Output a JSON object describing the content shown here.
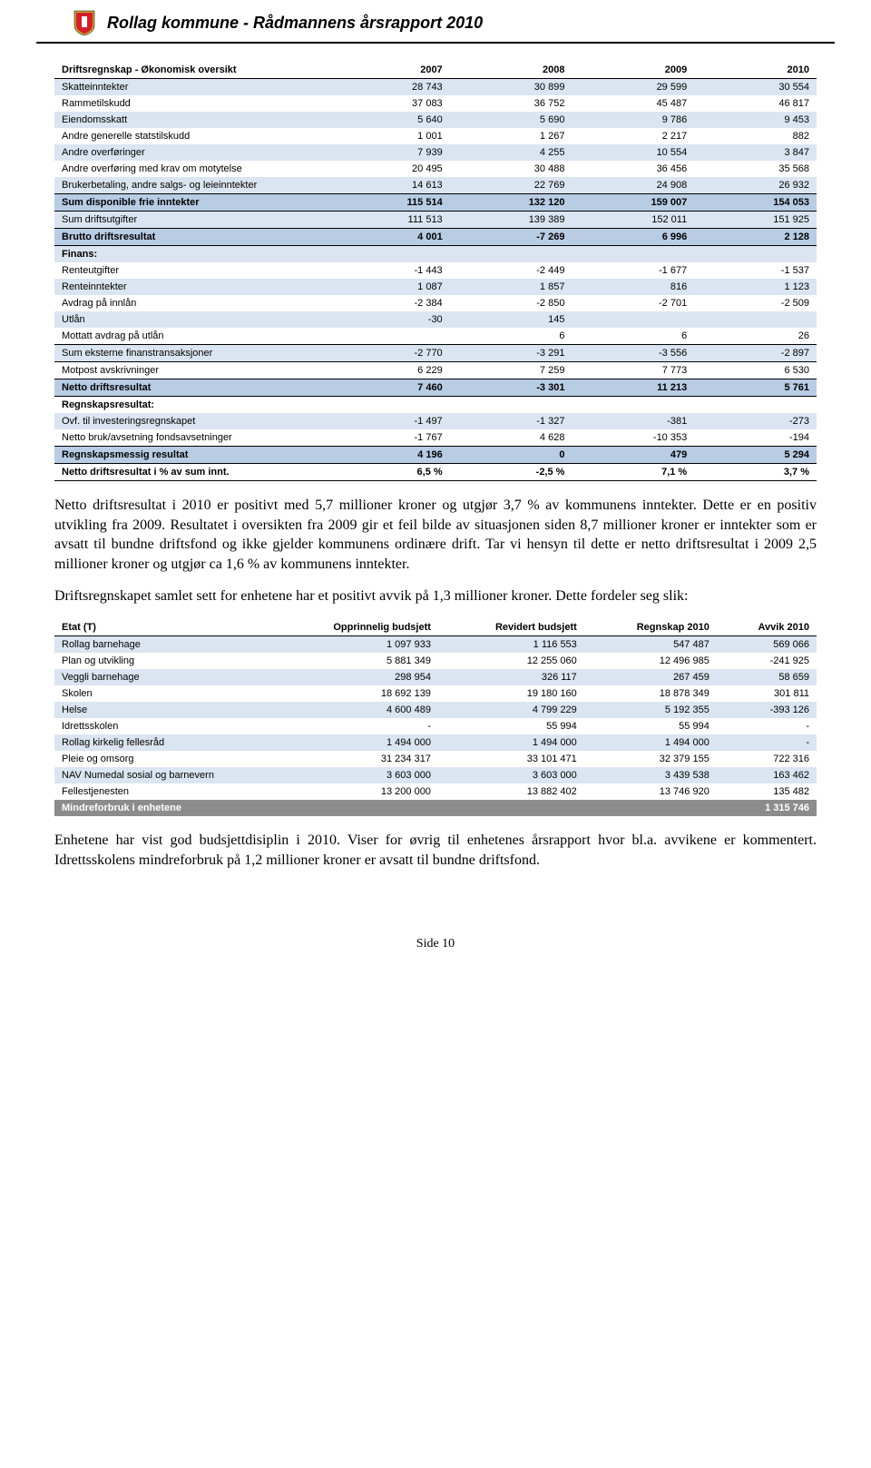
{
  "header": {
    "title": "Rollag kommune  -  Rådmannens årsrapport 2010"
  },
  "table1": {
    "headers": [
      "Driftsregnskap - Økonomisk oversikt",
      "2007",
      "2008",
      "2009",
      "2010"
    ],
    "sections": [
      {
        "rows": [
          {
            "label": "Skatteinntekter",
            "cells": [
              "28 743",
              "30 899",
              "29 599",
              "30 554"
            ],
            "classes": [
              "bg-blue-lt"
            ]
          },
          {
            "label": "Rammetilskudd",
            "cells": [
              "37 083",
              "36 752",
              "45 487",
              "46 817"
            ],
            "classes": []
          },
          {
            "label": "Eiendomsskatt",
            "cells": [
              "5 640",
              "5 690",
              "9 786",
              "9 453"
            ],
            "classes": [
              "bg-blue-lt"
            ]
          },
          {
            "label": "Andre generelle statstilskudd",
            "cells": [
              "1 001",
              "1 267",
              "2 217",
              "882"
            ],
            "classes": []
          },
          {
            "label": "Andre overføringer",
            "cells": [
              "7 939",
              "4 255",
              "10 554",
              "3 847"
            ],
            "classes": [
              "bg-blue-lt"
            ]
          },
          {
            "label": "Andre overføring med krav om motytelse",
            "cells": [
              "20 495",
              "30 488",
              "36 456",
              "35 568"
            ],
            "classes": []
          },
          {
            "label": "Brukerbetaling, andre salgs- og leieinntekter",
            "cells": [
              "14 613",
              "22 769",
              "24 908",
              "26 932"
            ],
            "classes": [
              "bg-blue-lt"
            ]
          },
          {
            "label": "Sum disponible frie inntekter",
            "cells": [
              "115 514",
              "132 120",
              "159 007",
              "154 053"
            ],
            "classes": [
              "bg-blue-md",
              "bold",
              "border-top",
              "border-bottom"
            ]
          }
        ]
      },
      {
        "rows": [
          {
            "label": "Sum driftsutgifter",
            "cells": [
              "111 513",
              "139 389",
              "152 011",
              "151 925"
            ],
            "classes": [
              "bg-blue-lt",
              "border-bottom"
            ]
          },
          {
            "label": "Brutto driftsresultat",
            "cells": [
              "4 001",
              "-7 269",
              "6 996",
              "2 128"
            ],
            "classes": [
              "bg-blue-md",
              "bold",
              "border-bottom"
            ]
          }
        ]
      },
      {
        "rows": [
          {
            "label": "Finans:",
            "cells": [
              "",
              "",
              "",
              ""
            ],
            "classes": [
              "bg-blue-lt",
              "bold"
            ]
          },
          {
            "label": "Renteutgifter",
            "cells": [
              "-1 443",
              "-2 449",
              "-1 677",
              "-1 537"
            ],
            "classes": []
          },
          {
            "label": "Renteinntekter",
            "cells": [
              "1 087",
              "1 857",
              "816",
              "1 123"
            ],
            "classes": [
              "bg-blue-lt"
            ]
          },
          {
            "label": "Avdrag på innlån",
            "cells": [
              "-2 384",
              "-2 850",
              "-2 701",
              "-2 509"
            ],
            "classes": []
          },
          {
            "label": "Utlån",
            "cells": [
              "-30",
              "145",
              "",
              ""
            ],
            "classes": [
              "bg-blue-lt"
            ]
          },
          {
            "label": "Mottatt avdrag på utlån",
            "cells": [
              "",
              "6",
              "6",
              "26"
            ],
            "classes": []
          },
          {
            "label": "Sum eksterne finanstransaksjoner",
            "cells": [
              "-2 770",
              "-3 291",
              "-3 556",
              "-2 897"
            ],
            "classes": [
              "bg-blue-lt",
              "border-top",
              "border-bottom"
            ]
          },
          {
            "label": "Motpost avskrivninger",
            "cells": [
              "6 229",
              "7 259",
              "7 773",
              "6 530"
            ],
            "classes": [
              "border-bottom"
            ]
          },
          {
            "label": "Netto driftsresultat",
            "cells": [
              "7 460",
              "-3 301",
              "11 213",
              "5 761"
            ],
            "classes": [
              "bg-blue-md",
              "bold",
              "border-bottom"
            ]
          }
        ]
      },
      {
        "rows": [
          {
            "label": "Regnskapsresultat:",
            "cells": [
              "",
              "",
              "",
              ""
            ],
            "classes": [
              "bold"
            ]
          },
          {
            "label": "Ovf. til investeringsregnskapet",
            "cells": [
              "-1 497",
              "-1 327",
              "-381",
              "-273"
            ],
            "classes": [
              "bg-blue-lt"
            ]
          },
          {
            "label": "Netto bruk/avsetning fondsavsetninger",
            "cells": [
              "-1 767",
              "4 628",
              "-10 353",
              "-194"
            ],
            "classes": [
              "border-bottom"
            ]
          },
          {
            "label": "Regnskapsmessig resultat",
            "cells": [
              "4 196",
              "0",
              "479",
              "5 294"
            ],
            "classes": [
              "bg-blue-md",
              "bold",
              "border-bottom"
            ]
          },
          {
            "label": "Netto driftsresultat i % av sum innt.",
            "cells": [
              "6,5 %",
              "-2,5 %",
              "7,1 %",
              "3,7 %"
            ],
            "classes": [
              "bold",
              "border-bottom"
            ]
          }
        ]
      }
    ]
  },
  "paragraphs": [
    "Netto driftsresultat i 2010 er positivt med 5,7 millioner kroner og utgjør 3,7 % av kommunens inntekter. Dette er en positiv utvikling fra 2009. Resultatet i oversikten fra 2009 gir et feil bilde av situasjonen siden 8,7 millioner kroner er inntekter som er avsatt til bundne driftsfond og ikke gjelder kommunens ordinære drift. Tar vi hensyn til dette er netto driftsresultat i 2009 2,5 millioner kroner og utgjør ca 1,6 % av kommunens inntekter.",
    "Driftsregnskapet samlet sett for enhetene har et positivt avvik på 1,3 millioner kroner. Dette fordeler seg slik:"
  ],
  "table2": {
    "headers": [
      "Etat (T)",
      "Opprinnelig budsjett",
      "Revidert budsjett",
      "Regnskap 2010",
      "Avvik 2010"
    ],
    "rows": [
      {
        "label": "Rollag barnehage",
        "cells": [
          "1 097 933",
          "1 116 553",
          "547 487",
          "569 066"
        ],
        "classes": [
          "bg-blue-lt"
        ]
      },
      {
        "label": "Plan og utvikling",
        "cells": [
          "5 881 349",
          "12 255 060",
          "12 496 985",
          "-241 925"
        ],
        "classes": []
      },
      {
        "label": "Veggli barnehage",
        "cells": [
          "298 954",
          "326 117",
          "267 459",
          "58 659"
        ],
        "classes": [
          "bg-blue-lt"
        ]
      },
      {
        "label": "Skolen",
        "cells": [
          "18 692 139",
          "19 180 160",
          "18 878 349",
          "301 811"
        ],
        "classes": []
      },
      {
        "label": "Helse",
        "cells": [
          "4 600 489",
          "4 799 229",
          "5 192 355",
          "-393 126"
        ],
        "classes": [
          "bg-blue-lt"
        ]
      },
      {
        "label": "Idrettsskolen",
        "cells": [
          "-",
          "55 994",
          "55 994",
          "-"
        ],
        "classes": []
      },
      {
        "label": "Rollag kirkelig fellesråd",
        "cells": [
          "1 494 000",
          "1 494 000",
          "1 494 000",
          "-"
        ],
        "classes": [
          "bg-blue-lt"
        ]
      },
      {
        "label": "Pleie og omsorg",
        "cells": [
          "31 234 317",
          "33 101 471",
          "32 379 155",
          "722 316"
        ],
        "classes": []
      },
      {
        "label": "NAV Numedal sosial og barnevern",
        "cells": [
          "3 603 000",
          "3 603 000",
          "3 439 538",
          "163 462"
        ],
        "classes": [
          "bg-blue-lt"
        ]
      },
      {
        "label": "Fellestjenesten",
        "cells": [
          "13 200 000",
          "13 882 402",
          "13 746 920",
          "135 482"
        ],
        "classes": []
      }
    ],
    "footer": {
      "label": "Mindreforbruk i enhetene",
      "value": "1 315 746"
    }
  },
  "paragraphs2": [
    "Enhetene har vist god budsjettdisiplin i 2010. Viser for øvrig til enhetenes årsrapport hvor bl.a. avvikene er kommentert. Idrettsskolens mindreforbruk på 1,2 millioner kroner er avsatt til bundne driftsfond."
  ],
  "footer": {
    "text": "Side 10"
  }
}
